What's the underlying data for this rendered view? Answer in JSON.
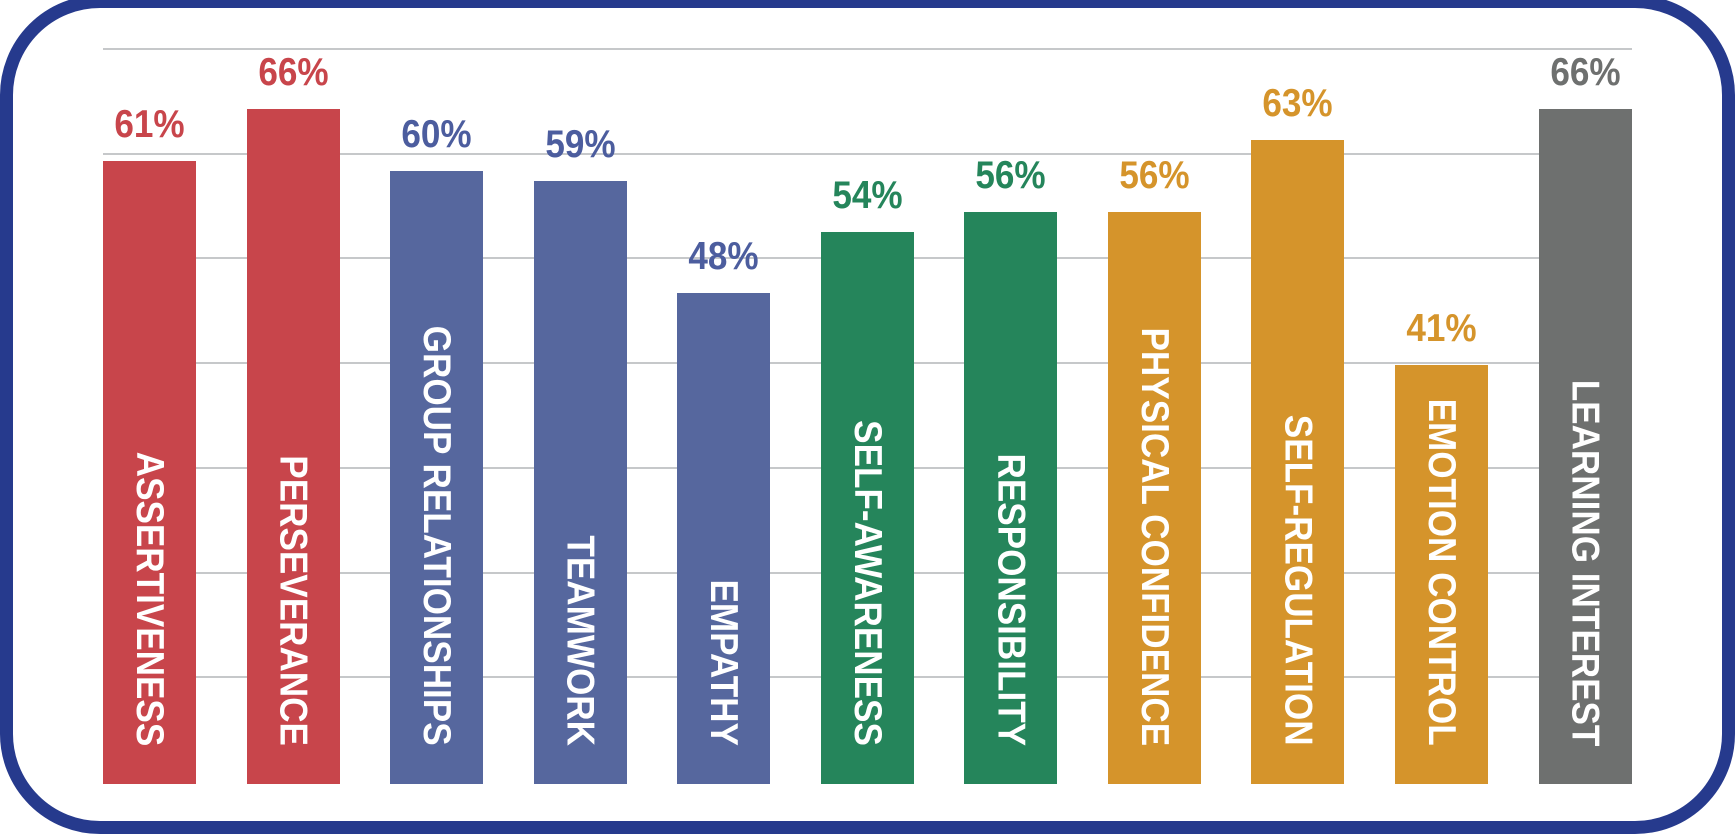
{
  "page": {
    "background_color": "#FFFFFF",
    "frame_border_color": "#263A8D",
    "gridline_color": "#C6C8CA"
  },
  "chart_data": {
    "type": "bar",
    "title": "",
    "xlabel": "",
    "ylabel": "",
    "categories": [
      "ASSERTIVENESS",
      "PERSEVERANCE",
      "GROUP RELATIONSHIPS",
      "TEAMWORK",
      "EMPATHY",
      "SELF-AWARENESS",
      "RESPONSIBILITY",
      "PHYSICAL CONFIDENCE",
      "SELF-REGULATION",
      "EMOTION CONTROL",
      "LEARNING INTEREST"
    ],
    "values": [
      61,
      66,
      60,
      59,
      48,
      54,
      56,
      56,
      63,
      41,
      66
    ],
    "value_labels": [
      "61%",
      "66%",
      "60%",
      "59%",
      "48%",
      "54%",
      "56%",
      "56%",
      "63%",
      "41%",
      "66%"
    ],
    "bar_colors": [
      "#C8454B",
      "#C8454B",
      "#56679E",
      "#56679E",
      "#56679E",
      "#25855B",
      "#25855B",
      "#D5942B",
      "#D5942B",
      "#D5942B",
      "#6E706F"
    ],
    "value_label_colors": [
      "#C8454B",
      "#C8454B",
      "#4C5D9E",
      "#4C5D9E",
      "#4C5D9E",
      "#25855B",
      "#25855B",
      "#D5942B",
      "#D5942B",
      "#D5942B",
      "#6E706F"
    ],
    "ylim": [
      0,
      73
    ],
    "grid": "horizontal",
    "gridline_count": 7,
    "legend": "none",
    "category_label_position": "inside-bar-bottom-rotated",
    "value_label_position": "above-bar"
  }
}
